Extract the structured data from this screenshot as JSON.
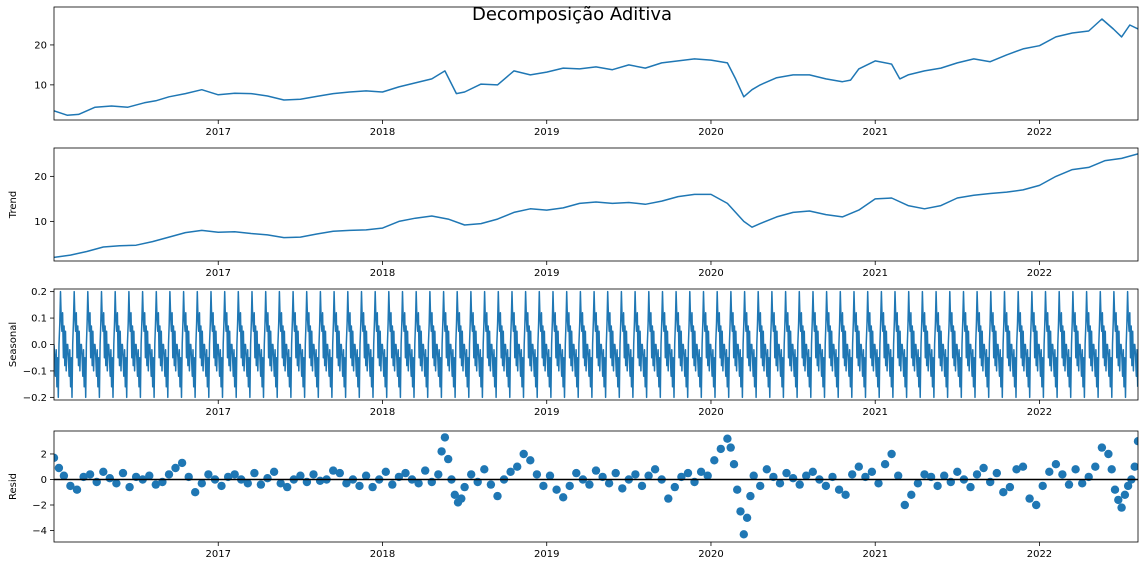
{
  "title": "Decomposição Aditiva",
  "colors": {
    "series": "#1f77b4",
    "axis": "#000000",
    "zero_line": "#000000"
  },
  "chart_data": [
    {
      "type": "line",
      "id": "observed",
      "ylabel": "",
      "xlim": [
        2016.0,
        2022.6
      ],
      "ylim": [
        1.2,
        29.5
      ],
      "xticks": [
        2017,
        2018,
        2019,
        2020,
        2021,
        2022
      ],
      "xticklabels": [
        "2017",
        "2018",
        "2019",
        "2020",
        "2021",
        "2022"
      ],
      "yticks": [
        10,
        20
      ],
      "yticklabels": [
        "10",
        "20"
      ],
      "x": [
        2016.0,
        2016.08,
        2016.15,
        2016.25,
        2016.35,
        2016.45,
        2016.55,
        2016.62,
        2016.7,
        2016.8,
        2016.9,
        2017.0,
        2017.1,
        2017.2,
        2017.3,
        2017.4,
        2017.5,
        2017.6,
        2017.7,
        2017.8,
        2017.9,
        2018.0,
        2018.1,
        2018.2,
        2018.3,
        2018.38,
        2018.45,
        2018.5,
        2018.6,
        2018.7,
        2018.8,
        2018.9,
        2019.0,
        2019.1,
        2019.2,
        2019.3,
        2019.4,
        2019.5,
        2019.6,
        2019.7,
        2019.8,
        2019.9,
        2020.0,
        2020.1,
        2020.15,
        2020.2,
        2020.25,
        2020.3,
        2020.4,
        2020.5,
        2020.6,
        2020.7,
        2020.8,
        2020.85,
        2020.9,
        2021.0,
        2021.1,
        2021.15,
        2021.2,
        2021.3,
        2021.4,
        2021.5,
        2021.6,
        2021.7,
        2021.8,
        2021.9,
        2022.0,
        2022.1,
        2022.2,
        2022.3,
        2022.38,
        2022.45,
        2022.5,
        2022.55,
        2022.6
      ],
      "y": [
        3.5,
        2.4,
        2.6,
        4.4,
        4.7,
        4.4,
        5.5,
        6.0,
        7.0,
        7.8,
        8.8,
        7.5,
        7.9,
        7.8,
        7.2,
        6.2,
        6.4,
        7.1,
        7.8,
        8.2,
        8.5,
        8.2,
        9.5,
        10.5,
        11.5,
        13.5,
        7.8,
        8.2,
        10.2,
        10.0,
        13.5,
        12.5,
        13.2,
        14.2,
        14.0,
        14.5,
        13.8,
        15.0,
        14.2,
        15.5,
        16.0,
        16.5,
        16.2,
        15.5,
        11.5,
        7.0,
        8.8,
        10.0,
        11.8,
        12.5,
        12.5,
        11.5,
        10.8,
        11.2,
        14.0,
        16.0,
        15.2,
        11.5,
        12.5,
        13.5,
        14.2,
        15.5,
        16.5,
        15.8,
        17.5,
        19.0,
        19.8,
        22.0,
        23.0,
        23.5,
        26.5,
        24.0,
        22.0,
        25.0,
        24.0
      ]
    },
    {
      "type": "line",
      "id": "trend",
      "ylabel": "Trend",
      "xlim": [
        2016.0,
        2022.6
      ],
      "ylim": [
        1.2,
        26.3
      ],
      "xticks": [
        2017,
        2018,
        2019,
        2020,
        2021,
        2022
      ],
      "xticklabels": [
        "2017",
        "2018",
        "2019",
        "2020",
        "2021",
        "2022"
      ],
      "yticks": [
        10,
        20
      ],
      "yticklabels": [
        "10",
        "20"
      ],
      "x": [
        2016.0,
        2016.1,
        2016.2,
        2016.3,
        2016.4,
        2016.5,
        2016.6,
        2016.7,
        2016.8,
        2016.9,
        2017.0,
        2017.1,
        2017.2,
        2017.3,
        2017.4,
        2017.5,
        2017.6,
        2017.7,
        2017.8,
        2017.9,
        2018.0,
        2018.1,
        2018.2,
        2018.3,
        2018.4,
        2018.5,
        2018.6,
        2018.7,
        2018.8,
        2018.9,
        2019.0,
        2019.1,
        2019.2,
        2019.3,
        2019.4,
        2019.5,
        2019.6,
        2019.7,
        2019.8,
        2019.9,
        2020.0,
        2020.1,
        2020.15,
        2020.2,
        2020.25,
        2020.3,
        2020.4,
        2020.5,
        2020.6,
        2020.7,
        2020.8,
        2020.9,
        2021.0,
        2021.1,
        2021.2,
        2021.3,
        2021.4,
        2021.5,
        2021.6,
        2021.7,
        2021.8,
        2021.9,
        2022.0,
        2022.1,
        2022.2,
        2022.3,
        2022.4,
        2022.5,
        2022.6
      ],
      "y": [
        2.0,
        2.5,
        3.3,
        4.3,
        4.6,
        4.7,
        5.5,
        6.5,
        7.5,
        8.0,
        7.6,
        7.7,
        7.3,
        7.0,
        6.4,
        6.5,
        7.2,
        7.8,
        8.0,
        8.1,
        8.5,
        10.0,
        10.7,
        11.2,
        10.5,
        9.2,
        9.5,
        10.5,
        12.0,
        12.8,
        12.5,
        13.0,
        14.0,
        14.3,
        14.0,
        14.2,
        13.8,
        14.5,
        15.5,
        16.0,
        16.0,
        14.0,
        12.0,
        10.0,
        8.7,
        9.5,
        11.0,
        12.0,
        12.3,
        11.5,
        11.0,
        12.5,
        15.0,
        15.2,
        13.5,
        12.8,
        13.5,
        15.2,
        15.8,
        16.2,
        16.5,
        17.0,
        18.0,
        20.0,
        21.5,
        22.0,
        23.5,
        24.0,
        25.0
      ]
    },
    {
      "type": "line",
      "id": "seasonal",
      "ylabel": "Seasonal",
      "xlim": [
        2016.0,
        2022.6
      ],
      "ylim": [
        -0.21,
        0.21
      ],
      "xticks": [
        2017,
        2018,
        2019,
        2020,
        2021,
        2022
      ],
      "xticklabels": [
        "2017",
        "2018",
        "2019",
        "2020",
        "2021",
        "2022"
      ],
      "yticks": [
        -0.2,
        -0.1,
        0.0,
        0.1,
        0.2
      ],
      "yticklabels": [
        "−0.2",
        "−0.1",
        "0.0",
        "0.1",
        "0.2"
      ],
      "period_years": 0.0833,
      "pattern": [
        0.0,
        -0.05,
        -0.12,
        -0.02,
        -0.16,
        -0.05,
        -0.2,
        0.0,
        0.08,
        0.2,
        0.1,
        0.05,
        0.12,
        -0.05,
        0.07,
        -0.08,
        0.05,
        -0.1,
        0.0
      ]
    },
    {
      "type": "scatter",
      "id": "resid",
      "ylabel": "Resid",
      "xlim": [
        2016.0,
        2022.6
      ],
      "ylim": [
        -4.9,
        3.8
      ],
      "xticks": [
        2017,
        2018,
        2019,
        2020,
        2021,
        2022
      ],
      "xticklabels": [
        "2017",
        "2018",
        "2019",
        "2020",
        "2021",
        "2022"
      ],
      "yticks": [
        -4,
        -2,
        0,
        2
      ],
      "yticklabels": [
        "−4",
        "−2",
        "0",
        "2"
      ],
      "zero_line": true,
      "x": [
        2016.0,
        2016.03,
        2016.06,
        2016.1,
        2016.14,
        2016.18,
        2016.22,
        2016.26,
        2016.3,
        2016.34,
        2016.38,
        2016.42,
        2016.46,
        2016.5,
        2016.54,
        2016.58,
        2016.62,
        2016.66,
        2016.7,
        2016.74,
        2016.78,
        2016.82,
        2016.86,
        2016.9,
        2016.94,
        2016.98,
        2017.02,
        2017.06,
        2017.1,
        2017.14,
        2017.18,
        2017.22,
        2017.26,
        2017.3,
        2017.34,
        2017.38,
        2017.42,
        2017.46,
        2017.5,
        2017.54,
        2017.58,
        2017.62,
        2017.66,
        2017.7,
        2017.74,
        2017.78,
        2017.82,
        2017.86,
        2017.9,
        2017.94,
        2017.98,
        2018.02,
        2018.06,
        2018.1,
        2018.14,
        2018.18,
        2018.22,
        2018.26,
        2018.3,
        2018.34,
        2018.36,
        2018.38,
        2018.4,
        2018.42,
        2018.44,
        2018.46,
        2018.48,
        2018.5,
        2018.54,
        2018.58,
        2018.62,
        2018.66,
        2018.7,
        2018.74,
        2018.78,
        2018.82,
        2018.86,
        2018.9,
        2018.94,
        2018.98,
        2019.02,
        2019.06,
        2019.1,
        2019.14,
        2019.18,
        2019.22,
        2019.26,
        2019.3,
        2019.34,
        2019.38,
        2019.42,
        2019.46,
        2019.5,
        2019.54,
        2019.58,
        2019.62,
        2019.66,
        2019.7,
        2019.74,
        2019.78,
        2019.82,
        2019.86,
        2019.9,
        2019.94,
        2019.98,
        2020.02,
        2020.06,
        2020.1,
        2020.12,
        2020.14,
        2020.16,
        2020.18,
        2020.2,
        2020.22,
        2020.24,
        2020.26,
        2020.3,
        2020.34,
        2020.38,
        2020.42,
        2020.46,
        2020.5,
        2020.54,
        2020.58,
        2020.62,
        2020.66,
        2020.7,
        2020.74,
        2020.78,
        2020.82,
        2020.86,
        2020.9,
        2020.94,
        2020.98,
        2021.02,
        2021.06,
        2021.1,
        2021.14,
        2021.18,
        2021.22,
        2021.26,
        2021.3,
        2021.34,
        2021.38,
        2021.42,
        2021.46,
        2021.5,
        2021.54,
        2021.58,
        2021.62,
        2021.66,
        2021.7,
        2021.74,
        2021.78,
        2021.82,
        2021.86,
        2021.9,
        2021.94,
        2021.98,
        2022.02,
        2022.06,
        2022.1,
        2022.14,
        2022.18,
        2022.22,
        2022.26,
        2022.3,
        2022.34,
        2022.38,
        2022.42,
        2022.44,
        2022.46,
        2022.48,
        2022.5,
        2022.52,
        2022.54,
        2022.56,
        2022.58,
        2022.6
      ],
      "y": [
        1.7,
        0.9,
        0.3,
        -0.5,
        -0.8,
        0.2,
        0.4,
        -0.2,
        0.6,
        0.1,
        -0.3,
        0.5,
        -0.6,
        0.2,
        0.0,
        0.3,
        -0.4,
        -0.2,
        0.4,
        0.9,
        1.3,
        0.2,
        -1.0,
        -0.3,
        0.4,
        0.0,
        -0.5,
        0.2,
        0.4,
        0.0,
        -0.3,
        0.5,
        -0.4,
        0.1,
        0.6,
        -0.3,
        -0.6,
        0.0,
        0.3,
        -0.2,
        0.4,
        -0.1,
        0.0,
        0.7,
        0.5,
        -0.3,
        0.0,
        -0.5,
        0.3,
        -0.6,
        0.0,
        0.6,
        -0.4,
        0.2,
        0.5,
        0.0,
        -0.3,
        0.7,
        -0.2,
        0.4,
        2.2,
        3.3,
        1.6,
        0.0,
        -1.2,
        -1.8,
        -1.5,
        -0.6,
        0.4,
        -0.2,
        0.8,
        -0.4,
        -1.3,
        0.0,
        0.6,
        1.0,
        2.0,
        1.5,
        0.4,
        -0.5,
        0.3,
        -0.8,
        -1.4,
        -0.5,
        0.5,
        0.0,
        -0.4,
        0.7,
        0.2,
        -0.3,
        0.5,
        -0.7,
        0.0,
        0.4,
        -0.5,
        0.3,
        0.8,
        0.0,
        -1.5,
        -0.6,
        0.2,
        0.5,
        -0.2,
        0.6,
        0.3,
        1.5,
        2.4,
        3.2,
        2.5,
        1.2,
        -0.8,
        -2.5,
        -4.3,
        -3.0,
        -1.3,
        0.3,
        -0.5,
        0.8,
        0.2,
        -0.3,
        0.5,
        0.1,
        -0.4,
        0.3,
        0.6,
        0.0,
        -0.5,
        0.2,
        -0.8,
        -1.2,
        0.4,
        1.0,
        0.2,
        0.6,
        -0.3,
        1.2,
        2.0,
        0.3,
        -2.0,
        -1.2,
        -0.3,
        0.4,
        0.2,
        -0.5,
        0.3,
        -0.2,
        0.6,
        0.0,
        -0.6,
        0.4,
        0.9,
        -0.2,
        0.5,
        -1.0,
        -0.6,
        0.8,
        1.0,
        -1.5,
        -2.0,
        -0.5,
        0.6,
        1.2,
        0.4,
        -0.4,
        0.8,
        -0.3,
        0.2,
        1.0,
        2.5,
        2.0,
        0.8,
        -0.8,
        -1.6,
        -2.2,
        -1.2,
        -0.5,
        0.0,
        1.0,
        3.0
      ]
    }
  ]
}
